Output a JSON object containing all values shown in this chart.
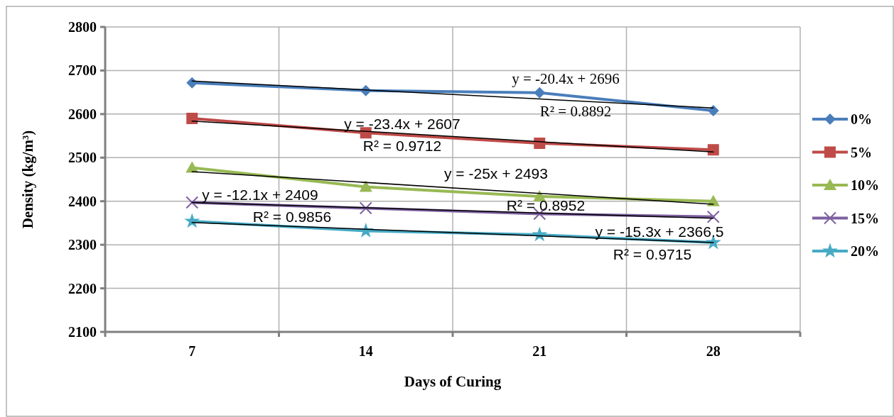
{
  "chart_data": {
    "type": "line",
    "xlabel": "Days of Curing",
    "ylabel": "Density (kg/m³)",
    "categories": [
      "7",
      "14",
      "21",
      "28"
    ],
    "ylim": [
      2100,
      2800
    ],
    "yticks": [
      2100,
      2200,
      2300,
      2400,
      2500,
      2600,
      2700,
      2800
    ],
    "grid": true,
    "legend": "right",
    "line_style": "solid",
    "series": [
      {
        "name": "0%",
        "color": "#4a7ebb",
        "marker": "diamond",
        "values": [
          2672,
          2654,
          2649,
          2608
        ]
      },
      {
        "name": "5%",
        "color": "#be4b48",
        "marker": "square",
        "values": [
          2590,
          2557,
          2533,
          2518
        ]
      },
      {
        "name": "10%",
        "color": "#98b954",
        "marker": "triangle",
        "values": [
          2477,
          2433,
          2411,
          2400
        ]
      },
      {
        "name": "15%",
        "color": "#7d60a0",
        "marker": "cross",
        "values": [
          2397,
          2384,
          2371,
          2364
        ]
      },
      {
        "name": "20%",
        "color": "#46aac5",
        "marker": "star",
        "values": [
          2354,
          2332,
          2323,
          2305
        ]
      },
      {
        "type": "line",
        "color": "#000000",
        "marker": "none",
        "x": [
          "7",
          "28"
        ],
        "values": [
          2676,
          2614
        ]
      },
      {
        "type": "line",
        "color": "#000000",
        "marker": "none",
        "x": [
          "7",
          "28"
        ],
        "values": [
          2584,
          2513
        ]
      },
      {
        "type": "line",
        "color": "#000000",
        "marker": "none",
        "x": [
          "7",
          "28"
        ],
        "values": [
          2468,
          2393
        ]
      },
      {
        "type": "line",
        "color": "#000000",
        "marker": "none",
        "x": [
          "7",
          "28"
        ],
        "values": [
          2397,
          2361
        ]
      },
      {
        "type": "line",
        "color": "#000000",
        "marker": "none",
        "x": [
          "7",
          "28"
        ],
        "values": [
          2351,
          2305
        ]
      }
    ],
    "annotations": [
      "y = -20.4x + 2696",
      "R² = 0.8892",
      "y = -23.4x + 2607",
      "R² = 0.9712",
      "y = -25x + 2493",
      "R² = 0.8952",
      "y = -12.1x + 2409",
      "R² = 0.9856",
      "y = -15.3x + 2366.5",
      "R² = 0.9715"
    ]
  }
}
